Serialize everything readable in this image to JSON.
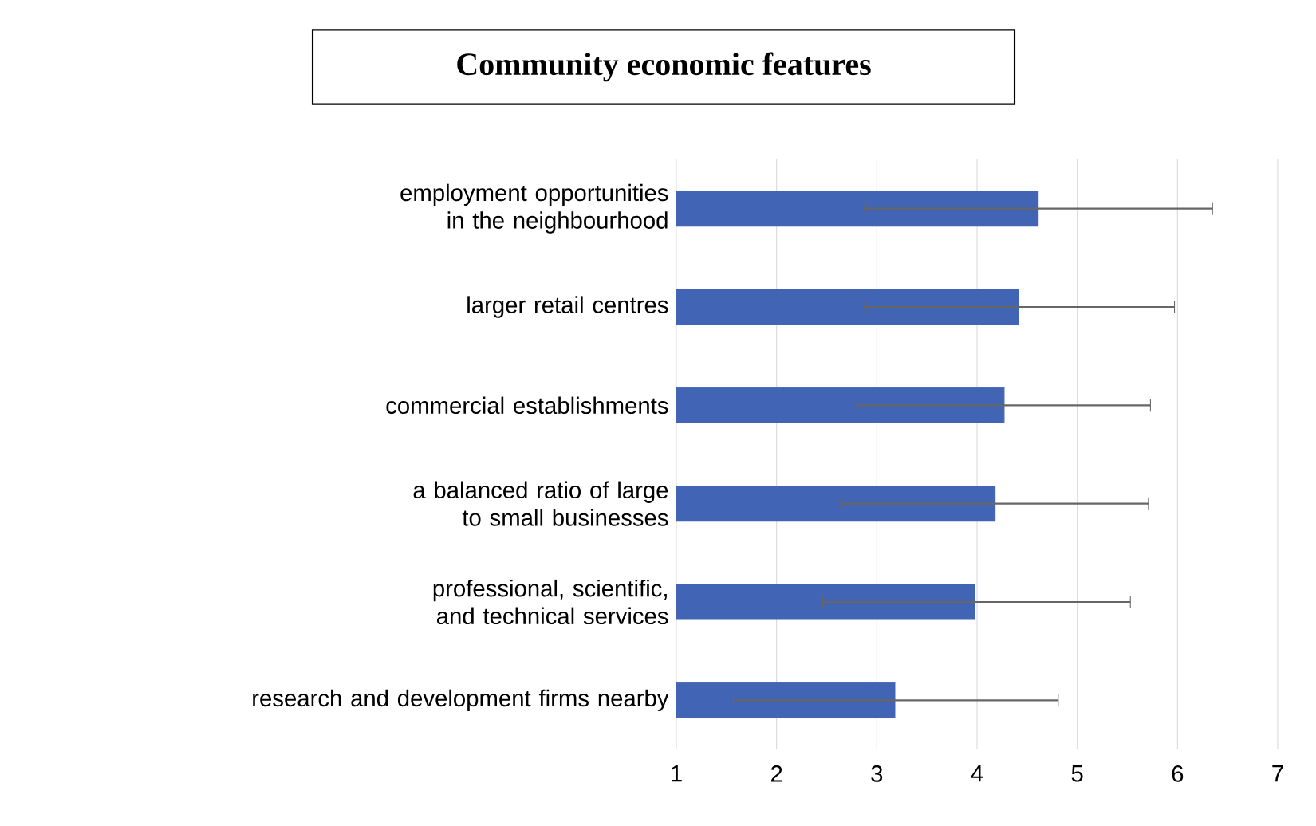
{
  "chart_data": {
    "type": "bar",
    "orientation": "horizontal",
    "title": "Community economic features",
    "categories": [
      "employment opportunities in the neighbourhood",
      "larger retail centres",
      "commercial establishments",
      "a balanced ratio of large to small businesses",
      "professional, scientific, and technical services",
      "research and development firms nearby"
    ],
    "values": [
      4.61,
      4.41,
      4.27,
      4.18,
      3.98,
      3.18
    ],
    "errors": [
      [
        2.87,
        6.35
      ],
      [
        2.87,
        5.97
      ],
      [
        2.8,
        5.73
      ],
      [
        2.64,
        5.71
      ],
      [
        2.46,
        5.53
      ],
      [
        1.57,
        4.81
      ]
    ],
    "color": "#4264b5",
    "xlim": [
      1,
      7
    ],
    "xticks": [
      1,
      2,
      3,
      4,
      5,
      6,
      7
    ],
    "grid": "x"
  }
}
